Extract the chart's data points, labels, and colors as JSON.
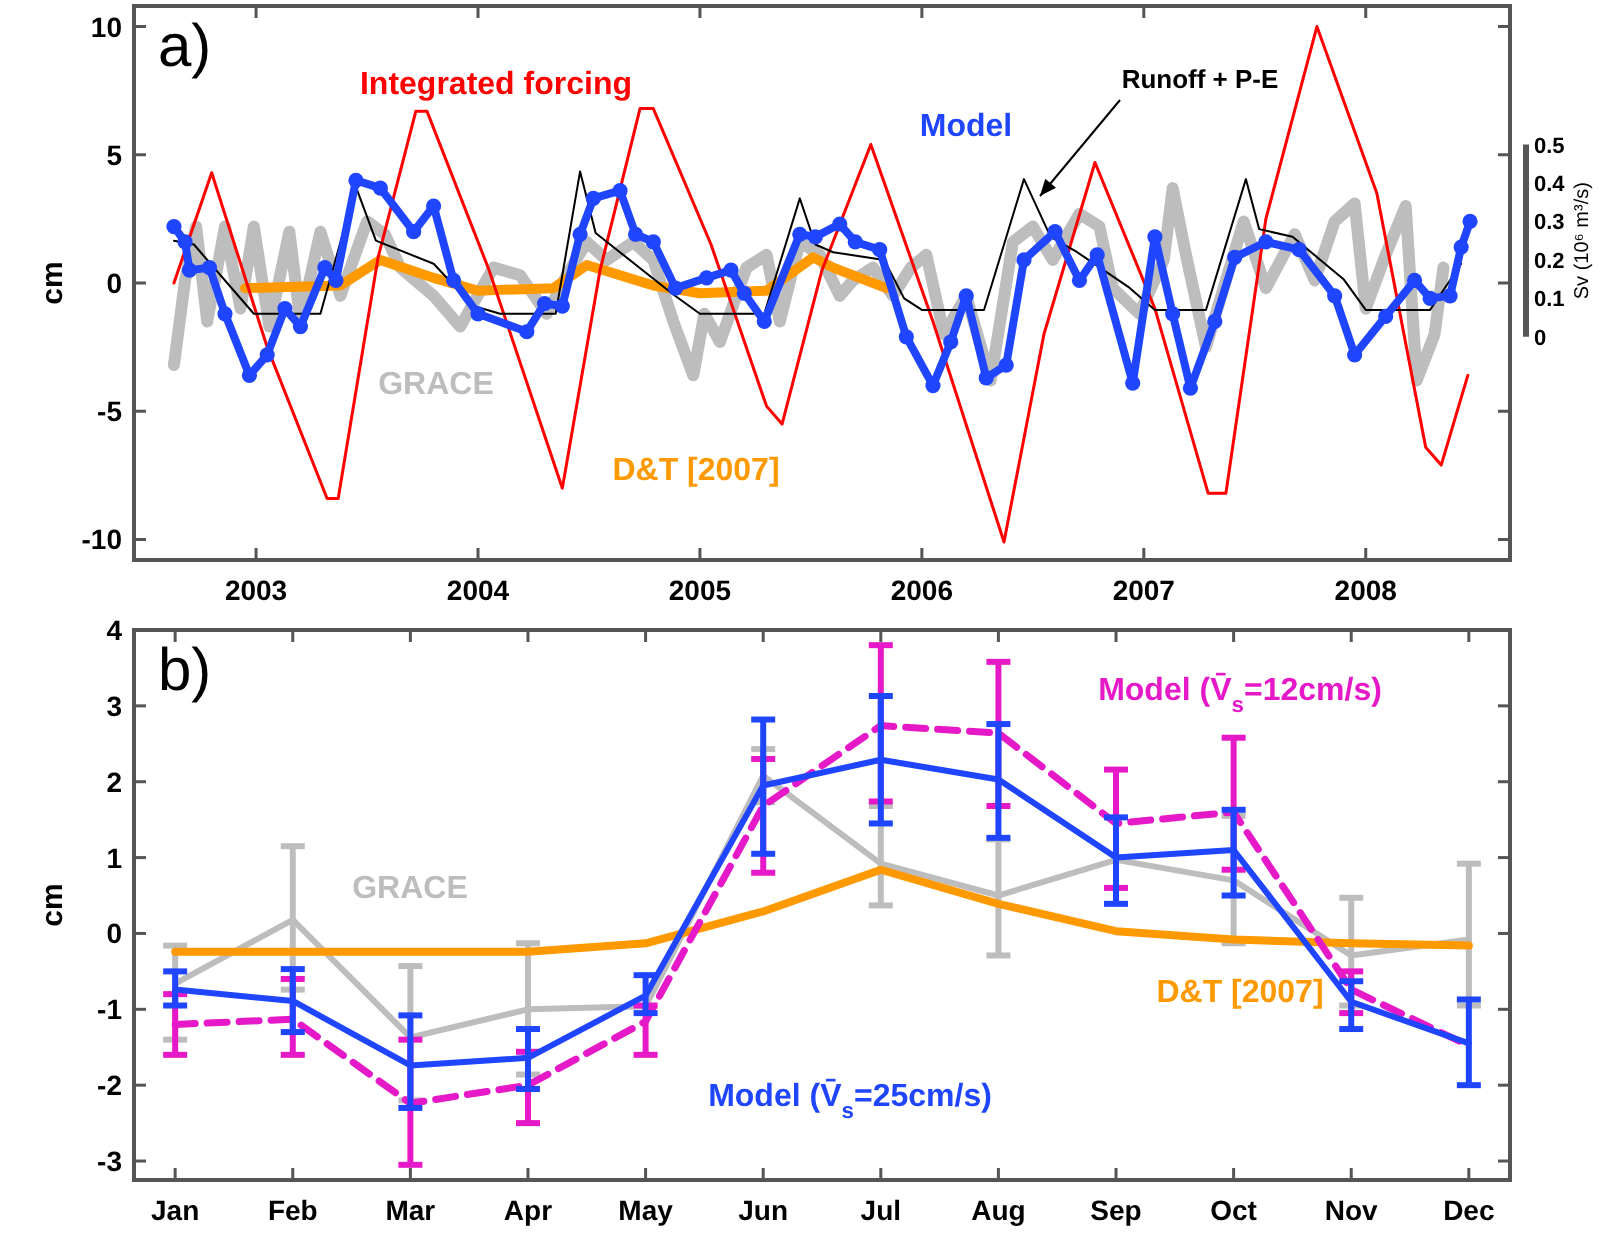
{
  "chart_data": [
    {
      "type": "line",
      "title": "a)",
      "ylabel": "cm",
      "y2label": "Sv (10⁶ m³/s)",
      "xlim": [
        2002.45,
        2008.65
      ],
      "xticks": [
        2003,
        2004,
        2005,
        2006,
        2007,
        2008
      ],
      "ylim": [
        -10.8,
        10.8
      ],
      "yticks": [
        -10,
        -5,
        0,
        5,
        10
      ],
      "y2lim": [
        -0.58,
        0.86
      ],
      "y2ticks": [
        0,
        0.1,
        0.2,
        0.3,
        0.4,
        0.5
      ],
      "legend": false,
      "grid": false,
      "series": [
        {
          "name": "GRACE",
          "color": "#bdbdbd",
          "x": [
            2002.63,
            2002.68,
            2002.73,
            2002.78,
            2002.86,
            2002.93,
            2002.99,
            2003.06,
            2003.15,
            2003.2,
            2003.29,
            2003.38,
            2003.5,
            2003.58,
            2003.65,
            2003.8,
            2003.92,
            2004.07,
            2004.19,
            2004.31,
            2004.4,
            2004.49,
            2004.58,
            2004.7,
            2004.79,
            2004.88,
            2004.97,
            2005.02,
            2005.09,
            2005.21,
            2005.3,
            2005.36,
            2005.45,
            2005.54,
            2005.63,
            2005.69,
            2005.78,
            2005.87,
            2005.95,
            2006.02,
            2006.1,
            2006.2,
            2006.31,
            2006.41,
            2006.5,
            2006.59,
            2006.71,
            2006.8,
            2006.86,
            2006.98,
            2007.09,
            2007.13,
            2007.19,
            2007.28,
            2007.37,
            2007.45,
            2007.55,
            2007.68,
            2007.77,
            2007.86,
            2007.95,
            2008.0,
            2008.09,
            2008.18,
            2008.23,
            2008.31,
            2008.35
          ],
          "values": [
            -3.2,
            0.1,
            2.2,
            -1.5,
            2.2,
            -1.0,
            2.2,
            -1.7,
            2.0,
            -1.5,
            2.0,
            -0.5,
            2.4,
            1.9,
            0.6,
            -0.5,
            -1.7,
            0.6,
            0.3,
            -1.2,
            0.3,
            1.6,
            0.9,
            1.6,
            0.9,
            -1.5,
            -3.6,
            -1.2,
            -2.3,
            0.6,
            1.1,
            -1.5,
            1.6,
            1.1,
            -0.5,
            0.1,
            0.6,
            -0.5,
            0.6,
            1.1,
            -2.0,
            -0.5,
            -3.8,
            1.6,
            2.2,
            0.9,
            2.7,
            2.2,
            -0.2,
            -1.2,
            0.9,
            3.7,
            1.1,
            -2.5,
            0.1,
            2.4,
            -0.2,
            1.9,
            0.1,
            2.4,
            3.1,
            -1.0,
            1.1,
            3.0,
            -3.8,
            -2.0,
            0.6
          ]
        },
        {
          "name": "D&T [2007]",
          "color": "#ff9900",
          "x": [
            2002.95,
            2003.38,
            2003.56,
            2003.8,
            2004.0,
            2004.34,
            2004.49,
            2004.79,
            2005.0,
            2005.3,
            2005.51,
            2005.6,
            2005.84
          ],
          "values": [
            -0.2,
            -0.1,
            0.9,
            0.2,
            -0.3,
            -0.2,
            0.7,
            -0.1,
            -0.4,
            -0.3,
            1.0,
            0.6,
            -0.2
          ]
        },
        {
          "name": "Integrated forcing",
          "color": "#ff0000",
          "x": [
            2002.63,
            2002.8,
            2003.05,
            2003.32,
            2003.37,
            2003.55,
            2003.72,
            2003.77,
            2004.05,
            2004.38,
            2004.55,
            2004.73,
            2004.79,
            2005.05,
            2005.3,
            2005.37,
            2005.55,
            2005.77,
            2006.05,
            2006.37,
            2006.55,
            2006.78,
            2007.05,
            2007.29,
            2007.37,
            2007.55,
            2007.78,
            2008.05,
            2008.27,
            2008.34,
            2008.46
          ],
          "values": [
            0,
            4.3,
            -2.5,
            -8.4,
            -8.4,
            1.0,
            6.7,
            6.7,
            0.5,
            -8.0,
            0.5,
            6.8,
            6.8,
            1.5,
            -4.8,
            -5.5,
            0.5,
            5.4,
            -1.5,
            -10.1,
            -2.0,
            4.7,
            -1.0,
            -8.2,
            -8.2,
            2.5,
            10.0,
            3.5,
            -6.4,
            -7.1,
            -3.6
          ]
        },
        {
          "name": "Runoff + P-E",
          "color": "#000000",
          "axis": "y2",
          "x": [
            2002.63,
            2002.72,
            2002.99,
            2003.29,
            2003.45,
            2003.54,
            2003.8,
            2003.98,
            2004.1,
            2004.35,
            2004.46,
            2004.53,
            2004.88,
            2005.0,
            2005.29,
            2005.45,
            2005.52,
            2005.6,
            2005.83,
            2005.92,
            2006.0,
            2006.28,
            2006.46,
            2006.58,
            2006.7,
            2006.93,
            2007.05,
            2007.28,
            2007.46,
            2007.52,
            2007.67,
            2007.9,
            2008.0,
            2008.29,
            2008.43
          ],
          "values": [
            0.25,
            0.24,
            0.06,
            0.06,
            0.39,
            0.25,
            0.19,
            0.08,
            0.06,
            0.06,
            0.43,
            0.27,
            0.11,
            0.06,
            0.06,
            0.36,
            0.24,
            0.22,
            0.2,
            0.1,
            0.07,
            0.07,
            0.41,
            0.26,
            0.22,
            0.13,
            0.07,
            0.07,
            0.41,
            0.28,
            0.26,
            0.15,
            0.07,
            0.07,
            0.19
          ]
        },
        {
          "name": "Model",
          "color": "#1f45ff",
          "marker": "circle",
          "x": [
            2002.63,
            2002.68,
            2002.7,
            2002.79,
            2002.86,
            2002.97,
            2003.05,
            2003.13,
            2003.2,
            2003.31,
            2003.36,
            2003.45,
            2003.56,
            2003.71,
            2003.8,
            2003.89,
            2004.0,
            2004.22,
            2004.3,
            2004.38,
            2004.46,
            2004.52,
            2004.64,
            2004.71,
            2004.79,
            2004.89,
            2005.03,
            2005.14,
            2005.2,
            2005.29,
            2005.45,
            2005.52,
            2005.63,
            2005.7,
            2005.81,
            2005.93,
            2006.05,
            2006.13,
            2006.2,
            2006.29,
            2006.38,
            2006.46,
            2006.6,
            2006.71,
            2006.79,
            2006.95,
            2007.05,
            2007.13,
            2007.21,
            2007.32,
            2007.41,
            2007.55,
            2007.7,
            2007.86,
            2007.95,
            2008.09,
            2008.22,
            2008.29,
            2008.38,
            2008.43,
            2008.47
          ],
          "values": [
            2.2,
            1.6,
            0.5,
            0.6,
            -1.2,
            -3.6,
            -2.8,
            -1.0,
            -1.7,
            0.6,
            0.1,
            4.0,
            3.7,
            2.0,
            3.0,
            0.1,
            -1.2,
            -1.9,
            -0.8,
            -0.9,
            1.9,
            3.3,
            3.6,
            1.9,
            1.6,
            -0.2,
            0.2,
            0.5,
            -0.4,
            -1.5,
            1.9,
            1.8,
            2.3,
            1.6,
            1.3,
            -2.1,
            -4.0,
            -2.3,
            -0.5,
            -3.7,
            -3.2,
            0.9,
            2.0,
            0.1,
            1.1,
            -3.9,
            1.8,
            -1.2,
            -4.1,
            -1.5,
            1.0,
            1.6,
            1.3,
            -0.5,
            -2.8,
            -1.3,
            0.1,
            -0.6,
            -0.5,
            1.4,
            2.4
          ]
        }
      ]
    },
    {
      "type": "line",
      "title": "b)",
      "ylabel": "cm",
      "categories": [
        "Jan",
        "Feb",
        "Mar",
        "Apr",
        "May",
        "Jun",
        "Jul",
        "Aug",
        "Sep",
        "Oct",
        "Nov",
        "Dec"
      ],
      "ylim": [
        -3.25,
        4
      ],
      "yticks": [
        -3,
        -2,
        -1,
        0,
        1,
        2,
        3,
        4
      ],
      "legend": false,
      "grid": false,
      "series": [
        {
          "name": "GRACE",
          "color": "#bdbdbd",
          "values": [
            -0.66,
            0.18,
            -1.37,
            -1.0,
            -0.96,
            2.08,
            0.92,
            0.5,
            0.97,
            0.7,
            -0.29,
            -0.08
          ],
          "errors": [
            [
              -1.4,
              -0.16
            ],
            [
              -0.74,
              1.15
            ],
            [
              -2.2,
              -0.43
            ],
            [
              -1.86,
              -0.13
            ],
            null,
            0.35,
            [
              0.37,
              1.68
            ],
            [
              -0.29,
              1.24
            ],
            null,
            [
              -0.13,
              1.55
            ],
            [
              -0.95,
              0.47
            ],
            [
              -0.95,
              0.92
            ]
          ]
        },
        {
          "name": "D&T [2007]",
          "color": "#ff9900",
          "values": [
            -0.24,
            -0.24,
            -0.24,
            -0.24,
            -0.13,
            0.29,
            0.84,
            0.39,
            0.03,
            -0.08,
            -0.13,
            -0.16
          ]
        },
        {
          "name": "Model (V̄$_{s}$=12cm/s)",
          "color": "#e619c8",
          "line_style": "dashed",
          "values": [
            -1.2,
            -1.13,
            -2.24,
            -2.0,
            -1.16,
            1.68,
            2.74,
            2.64,
            1.45,
            1.6,
            -0.74,
            -1.48
          ],
          "errors": [
            [
              -1.6,
              -0.8
            ],
            [
              -1.6,
              -0.6
            ],
            [
              -3.05,
              -1.4
            ],
            [
              -2.5,
              -1.56
            ],
            [
              -1.6,
              -0.95
            ],
            [
              0.8,
              2.3
            ],
            [
              1.74,
              3.8
            ],
            [
              1.68,
              3.58
            ],
            [
              0.6,
              2.16
            ],
            [
              0.84,
              2.58
            ],
            [
              -1.05,
              -0.5
            ],
            null
          ]
        },
        {
          "name": "Model (V̄$_{s}$=25cm/s)",
          "color": "#1f45ff",
          "values": [
            -0.74,
            -0.89,
            -1.74,
            -1.64,
            -0.82,
            1.95,
            2.29,
            2.03,
            1.0,
            1.1,
            -0.9,
            -1.45
          ],
          "errors": [
            [
              -0.95,
              -0.5
            ],
            [
              -1.3,
              -0.47
            ],
            [
              -2.3,
              -1.08
            ],
            [
              -2.05,
              -1.26
            ],
            [
              -1.05,
              -0.55
            ],
            [
              1.05,
              2.82
            ],
            [
              1.45,
              3.13
            ],
            [
              1.26,
              2.76
            ],
            [
              0.39,
              1.53
            ],
            [
              0.5,
              1.63
            ],
            [
              -1.26,
              -0.63
            ],
            [
              -2.0,
              -0.87
            ]
          ]
        }
      ]
    }
  ]
}
